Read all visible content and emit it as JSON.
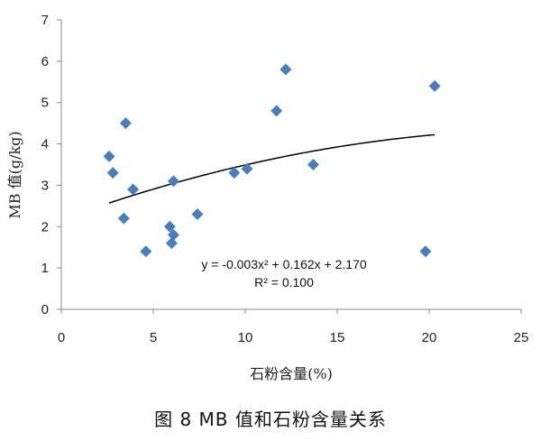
{
  "chart_data": {
    "type": "scatter",
    "xlabel": "石粉含量(%)",
    "ylabel": "MB 值(g/kg)",
    "xlim": [
      0,
      25
    ],
    "ylim": [
      0,
      7
    ],
    "x_ticks": [
      "0",
      "5",
      "10",
      "15",
      "20",
      "25"
    ],
    "y_ticks": [
      "0",
      "1",
      "2",
      "3",
      "4",
      "5",
      "6",
      "7"
    ],
    "grid": false,
    "marker": "diamond",
    "marker_color": "#4a7ebb",
    "points": [
      {
        "x": 2.6,
        "y": 3.7
      },
      {
        "x": 2.8,
        "y": 3.3
      },
      {
        "x": 3.4,
        "y": 2.2
      },
      {
        "x": 3.5,
        "y": 4.5
      },
      {
        "x": 3.9,
        "y": 2.9
      },
      {
        "x": 4.6,
        "y": 1.4
      },
      {
        "x": 5.9,
        "y": 2.0
      },
      {
        "x": 6.0,
        "y": 1.6
      },
      {
        "x": 6.1,
        "y": 1.8
      },
      {
        "x": 6.1,
        "y": 3.1
      },
      {
        "x": 7.4,
        "y": 2.3
      },
      {
        "x": 9.4,
        "y": 3.3
      },
      {
        "x": 10.1,
        "y": 3.4
      },
      {
        "x": 11.7,
        "y": 4.8
      },
      {
        "x": 12.2,
        "y": 5.8
      },
      {
        "x": 13.7,
        "y": 3.5
      },
      {
        "x": 19.8,
        "y": 1.4
      },
      {
        "x": 20.3,
        "y": 5.4
      }
    ],
    "trendline": {
      "type": "polynomial",
      "coefficients": [
        -0.003,
        0.162,
        2.17
      ],
      "x_range": [
        2.6,
        20.3
      ],
      "color": "#000000"
    },
    "equation_line1": "y = -0.003x² + 0.162x + 2.170",
    "equation_line2": "R² = 0.100"
  },
  "caption": "图 8   MB 值和石粉含量关系"
}
